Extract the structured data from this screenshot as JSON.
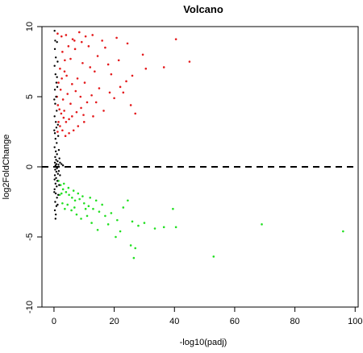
{
  "chart_data": {
    "type": "scatter",
    "title": "Volcano",
    "xlabel": "-log10(padj)",
    "ylabel": "log2FoldChange",
    "xlim": [
      -4,
      101
    ],
    "ylim": [
      -10,
      10
    ],
    "x_ticks": [
      0,
      20,
      40,
      60,
      80,
      100
    ],
    "y_ticks": [
      -10,
      -5,
      0,
      5,
      10
    ],
    "grid": false,
    "legend": "none",
    "reference_line": {
      "y": 0,
      "style": "dashed",
      "color": "#000000"
    },
    "colors": {
      "up": "#e41a1c",
      "down": "#22e022",
      "ns": "#000000"
    },
    "series": [
      {
        "color": "#e41a1c",
        "points": [
          [
            1.2,
            9.5
          ],
          [
            2.5,
            9.3
          ],
          [
            4.0,
            9.4
          ],
          [
            6.2,
            9.1
          ],
          [
            8.4,
            9.6
          ],
          [
            10.5,
            9.3
          ],
          [
            12.8,
            9.4
          ],
          [
            16.0,
            9.0
          ],
          [
            20.8,
            9.2
          ],
          [
            24.4,
            8.8
          ],
          [
            29.5,
            8.0
          ],
          [
            40.5,
            9.1
          ],
          [
            45.0,
            7.5
          ],
          [
            36.5,
            7.1
          ],
          [
            30.5,
            7.0
          ],
          [
            26.0,
            6.5
          ],
          [
            24.0,
            6.1
          ],
          [
            22.0,
            5.7
          ],
          [
            18.5,
            5.3
          ],
          [
            15.0,
            5.6
          ],
          [
            12.5,
            5.1
          ],
          [
            11.0,
            4.6
          ],
          [
            9.0,
            4.2
          ],
          [
            7.5,
            3.9
          ],
          [
            6.0,
            3.6
          ],
          [
            5.0,
            3.4
          ],
          [
            4.0,
            3.2
          ],
          [
            3.2,
            3.5
          ],
          [
            2.4,
            3.8
          ],
          [
            1.8,
            4.1
          ],
          [
            1.3,
            4.4
          ],
          [
            1.0,
            5.0
          ],
          [
            1.5,
            6.0
          ],
          [
            2.0,
            7.0
          ],
          [
            2.8,
            8.2
          ],
          [
            3.5,
            6.8
          ],
          [
            5.5,
            7.7
          ],
          [
            7.0,
            8.4
          ],
          [
            9.5,
            7.4
          ],
          [
            11.5,
            8.6
          ],
          [
            13.5,
            6.8
          ],
          [
            14.5,
            7.9
          ],
          [
            17.0,
            8.5
          ],
          [
            19.0,
            6.6
          ],
          [
            21.5,
            7.6
          ],
          [
            23.0,
            5.3
          ],
          [
            25.5,
            4.4
          ],
          [
            27.0,
            3.8
          ],
          [
            16.5,
            4.0
          ],
          [
            13.0,
            3.6
          ],
          [
            10.0,
            3.2
          ],
          [
            8.0,
            2.9
          ],
          [
            6.5,
            2.6
          ],
          [
            5.0,
            2.4
          ],
          [
            3.8,
            2.2
          ],
          [
            2.8,
            2.6
          ],
          [
            2.0,
            2.9
          ],
          [
            1.5,
            3.2
          ],
          [
            1.2,
            2.5
          ],
          [
            2.2,
            5.5
          ],
          [
            3.0,
            4.8
          ],
          [
            4.5,
            5.2
          ],
          [
            6.0,
            5.9
          ],
          [
            7.8,
            6.3
          ],
          [
            8.8,
            5.0
          ],
          [
            10.2,
            6.0
          ],
          [
            12.0,
            7.1
          ],
          [
            4.2,
            6.5
          ],
          [
            3.6,
            7.6
          ],
          [
            4.8,
            8.6
          ],
          [
            6.8,
            9.0
          ],
          [
            9.2,
            8.9
          ],
          [
            18.0,
            7.3
          ],
          [
            20.0,
            4.9
          ],
          [
            14.0,
            4.6
          ],
          [
            5.5,
            4.5
          ],
          [
            7.2,
            5.4
          ],
          [
            3.4,
            4.0
          ],
          [
            2.6,
            6.3
          ],
          [
            9.8,
            3.7
          ]
        ]
      },
      {
        "color": "#22e022",
        "points": [
          [
            1.5,
            -1.0
          ],
          [
            2.2,
            -1.3
          ],
          [
            3.0,
            -1.6
          ],
          [
            4.0,
            -1.8
          ],
          [
            5.0,
            -2.0
          ],
          [
            6.0,
            -2.2
          ],
          [
            7.0,
            -2.4
          ],
          [
            8.5,
            -2.3
          ],
          [
            10.0,
            -2.6
          ],
          [
            11.5,
            -2.8
          ],
          [
            13.0,
            -3.0
          ],
          [
            15.0,
            -3.2
          ],
          [
            17.0,
            -3.5
          ],
          [
            19.0,
            -3.3
          ],
          [
            21.0,
            -3.8
          ],
          [
            23.0,
            -2.9
          ],
          [
            24.5,
            -2.4
          ],
          [
            26.0,
            -3.9
          ],
          [
            28.0,
            -4.2
          ],
          [
            30.0,
            -4.0
          ],
          [
            33.5,
            -4.4
          ],
          [
            36.5,
            -4.3
          ],
          [
            39.5,
            -3.0
          ],
          [
            40.5,
            -4.3
          ],
          [
            20.5,
            -5.0
          ],
          [
            25.5,
            -5.6
          ],
          [
            27.0,
            -5.8
          ],
          [
            26.5,
            -6.5
          ],
          [
            53.0,
            -6.4
          ],
          [
            69.0,
            -4.1
          ],
          [
            96.0,
            -4.6
          ],
          [
            2.8,
            -2.6
          ],
          [
            3.6,
            -3.0
          ],
          [
            4.5,
            -2.7
          ],
          [
            5.8,
            -3.1
          ],
          [
            7.5,
            -3.4
          ],
          [
            9.0,
            -3.7
          ],
          [
            11.0,
            -3.5
          ],
          [
            12.5,
            -4.0
          ],
          [
            14.5,
            -4.5
          ],
          [
            16.0,
            -2.7
          ],
          [
            18.0,
            -4.1
          ],
          [
            22.0,
            -4.6
          ],
          [
            1.9,
            -2.0
          ],
          [
            2.5,
            -1.9
          ],
          [
            6.5,
            -1.7
          ],
          [
            8.0,
            -1.9
          ],
          [
            9.5,
            -2.1
          ],
          [
            12.0,
            -2.2
          ],
          [
            14.0,
            -2.4
          ],
          [
            3.3,
            -1.2
          ],
          [
            4.8,
            -1.5
          ],
          [
            6.8,
            -2.9
          ],
          [
            10.5,
            -3.0
          ]
        ]
      },
      {
        "color": "#000000",
        "points": [
          [
            0.2,
            9.7
          ],
          [
            0.4,
            9.0
          ],
          [
            0.3,
            8.4
          ],
          [
            0.6,
            7.8
          ],
          [
            0.2,
            7.2
          ],
          [
            0.5,
            6.6
          ],
          [
            0.8,
            6.0
          ],
          [
            0.3,
            5.5
          ],
          [
            0.7,
            5.0
          ],
          [
            0.4,
            4.5
          ],
          [
            0.9,
            4.0
          ],
          [
            0.2,
            3.6
          ],
          [
            0.6,
            3.2
          ],
          [
            0.8,
            2.8
          ],
          [
            0.3,
            2.4
          ],
          [
            0.5,
            2.0
          ],
          [
            0.9,
            1.7
          ],
          [
            0.2,
            1.4
          ],
          [
            0.6,
            1.1
          ],
          [
            1.0,
            0.9
          ],
          [
            0.4,
            0.7
          ],
          [
            0.7,
            0.5
          ],
          [
            1.2,
            0.4
          ],
          [
            0.3,
            0.3
          ],
          [
            0.8,
            0.2
          ],
          [
            1.5,
            0.15
          ],
          [
            0.5,
            0.1
          ],
          [
            1.0,
            -0.1
          ],
          [
            0.4,
            -0.2
          ],
          [
            0.8,
            -0.35
          ],
          [
            1.3,
            -0.5
          ],
          [
            0.3,
            -0.6
          ],
          [
            0.7,
            -0.8
          ],
          [
            1.1,
            -1.0
          ],
          [
            0.5,
            -1.2
          ],
          [
            0.9,
            -1.4
          ],
          [
            0.2,
            -1.6
          ],
          [
            0.6,
            -1.9
          ],
          [
            1.0,
            -2.2
          ],
          [
            0.4,
            -2.5
          ],
          [
            0.8,
            -2.8
          ],
          [
            0.3,
            -3.1
          ],
          [
            0.6,
            -3.4
          ],
          [
            1.0,
            8.9
          ],
          [
            1.2,
            7.5
          ],
          [
            1.0,
            6.4
          ],
          [
            1.1,
            5.7
          ],
          [
            1.3,
            3.0
          ],
          [
            1.4,
            2.2
          ],
          [
            1.6,
            1.2
          ],
          [
            1.8,
            0.6
          ],
          [
            2.0,
            0.3
          ],
          [
            2.5,
            0.2
          ],
          [
            3.0,
            0.1
          ],
          [
            1.6,
            -0.3
          ],
          [
            2.0,
            -0.6
          ],
          [
            1.7,
            -1.3
          ],
          [
            1.4,
            -2.0
          ],
          [
            1.2,
            -2.7
          ],
          [
            0.5,
            -3.7
          ],
          [
            0.2,
            -0.9
          ],
          [
            0.1,
            4.8
          ],
          [
            0.1,
            2.6
          ],
          [
            0.1,
            -1.8
          ]
        ]
      }
    ]
  }
}
